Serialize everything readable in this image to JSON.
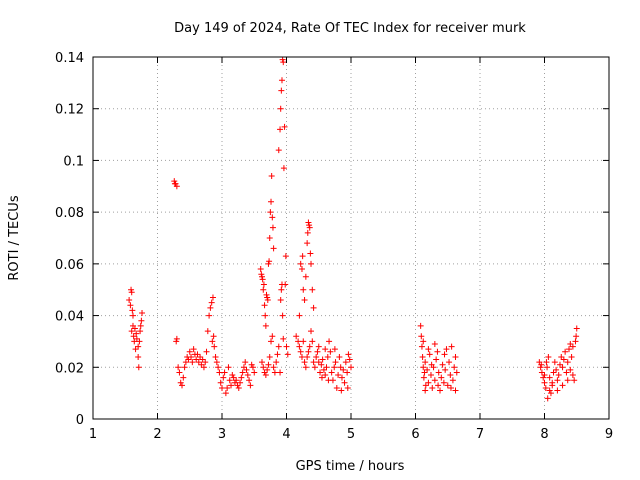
{
  "chart_data": {
    "type": "scatter",
    "title": "Day 149 of 2024, Rate Of TEC Index for receiver murk",
    "xlabel": "GPS time / hours",
    "ylabel": "ROTI / TECUs",
    "xlim": [
      1,
      9
    ],
    "ylim": [
      0,
      0.14
    ],
    "x_ticks": [
      "1",
      "2",
      "3",
      "4",
      "5",
      "6",
      "7",
      "8",
      "9"
    ],
    "y_ticks": [
      "0",
      "0.02",
      "0.04",
      "0.06",
      "0.08",
      "0.1",
      "0.12",
      "0.14"
    ],
    "grid": true,
    "marker": "+",
    "color": "#ff0000",
    "series": [
      {
        "points": [
          [
            1.56,
            0.046
          ],
          [
            1.58,
            0.044
          ],
          [
            1.59,
            0.05
          ],
          [
            1.6,
            0.049
          ],
          [
            1.61,
            0.042
          ],
          [
            1.6,
            0.034
          ],
          [
            1.62,
            0.036
          ],
          [
            1.63,
            0.032
          ],
          [
            1.64,
            0.03
          ],
          [
            1.65,
            0.035
          ],
          [
            1.67,
            0.033
          ],
          [
            1.68,
            0.031
          ],
          [
            1.7,
            0.028
          ],
          [
            1.7,
            0.024
          ],
          [
            1.71,
            0.02
          ],
          [
            1.72,
            0.03
          ],
          [
            1.73,
            0.034
          ],
          [
            1.74,
            0.036
          ],
          [
            1.75,
            0.038
          ],
          [
            1.76,
            0.041
          ],
          [
            1.66,
            0.027
          ],
          [
            1.62,
            0.04
          ],
          [
            2.26,
            0.092
          ],
          [
            2.28,
            0.091
          ],
          [
            2.3,
            0.09
          ],
          [
            2.27,
            0.091
          ],
          [
            2.29,
            0.03
          ],
          [
            2.3,
            0.031
          ],
          [
            2.32,
            0.02
          ],
          [
            2.34,
            0.018
          ],
          [
            2.36,
            0.014
          ],
          [
            2.38,
            0.013
          ],
          [
            2.4,
            0.016
          ],
          [
            2.42,
            0.02
          ],
          [
            2.44,
            0.022
          ],
          [
            2.46,
            0.024
          ],
          [
            2.48,
            0.023
          ],
          [
            2.5,
            0.026
          ],
          [
            2.52,
            0.024
          ],
          [
            2.54,
            0.022
          ],
          [
            2.56,
            0.027
          ],
          [
            2.58,
            0.025
          ],
          [
            2.6,
            0.023
          ],
          [
            2.62,
            0.025
          ],
          [
            2.64,
            0.022
          ],
          [
            2.66,
            0.024
          ],
          [
            2.68,
            0.021
          ],
          [
            2.7,
            0.023
          ],
          [
            2.72,
            0.02
          ],
          [
            2.74,
            0.022
          ],
          [
            2.76,
            0.026
          ],
          [
            2.78,
            0.034
          ],
          [
            2.8,
            0.04
          ],
          [
            2.82,
            0.043
          ],
          [
            2.84,
            0.045
          ],
          [
            2.86,
            0.047
          ],
          [
            2.85,
            0.03
          ],
          [
            2.87,
            0.032
          ],
          [
            2.88,
            0.028
          ],
          [
            2.9,
            0.024
          ],
          [
            2.92,
            0.022
          ],
          [
            2.94,
            0.02
          ],
          [
            2.96,
            0.018
          ],
          [
            2.98,
            0.014
          ],
          [
            3.0,
            0.012
          ],
          [
            3.02,
            0.016
          ],
          [
            3.04,
            0.018
          ],
          [
            3.06,
            0.01
          ],
          [
            3.08,
            0.012
          ],
          [
            3.1,
            0.02
          ],
          [
            3.12,
            0.015
          ],
          [
            3.14,
            0.013
          ],
          [
            3.16,
            0.017
          ],
          [
            3.18,
            0.016
          ],
          [
            3.2,
            0.014
          ],
          [
            3.22,
            0.015
          ],
          [
            3.24,
            0.013
          ],
          [
            3.26,
            0.012
          ],
          [
            3.28,
            0.014
          ],
          [
            3.3,
            0.016
          ],
          [
            3.32,
            0.018
          ],
          [
            3.34,
            0.02
          ],
          [
            3.36,
            0.022
          ],
          [
            3.38,
            0.019
          ],
          [
            3.4,
            0.017
          ],
          [
            3.42,
            0.015
          ],
          [
            3.44,
            0.013
          ],
          [
            3.46,
            0.021
          ],
          [
            3.48,
            0.02
          ],
          [
            3.5,
            0.018
          ],
          [
            3.6,
            0.058
          ],
          [
            3.61,
            0.056
          ],
          [
            3.62,
            0.055
          ],
          [
            3.63,
            0.054
          ],
          [
            3.64,
            0.05
          ],
          [
            3.65,
            0.052
          ],
          [
            3.66,
            0.044
          ],
          [
            3.67,
            0.04
          ],
          [
            3.68,
            0.036
          ],
          [
            3.69,
            0.048
          ],
          [
            3.7,
            0.047
          ],
          [
            3.71,
            0.046
          ],
          [
            3.72,
            0.06
          ],
          [
            3.73,
            0.061
          ],
          [
            3.74,
            0.07
          ],
          [
            3.75,
            0.08
          ],
          [
            3.76,
            0.084
          ],
          [
            3.77,
            0.094
          ],
          [
            3.78,
            0.078
          ],
          [
            3.79,
            0.074
          ],
          [
            3.8,
            0.066
          ],
          [
            3.62,
            0.022
          ],
          [
            3.64,
            0.02
          ],
          [
            3.66,
            0.018
          ],
          [
            3.68,
            0.017
          ],
          [
            3.7,
            0.019
          ],
          [
            3.72,
            0.021
          ],
          [
            3.74,
            0.024
          ],
          [
            3.76,
            0.03
          ],
          [
            3.78,
            0.032
          ],
          [
            3.8,
            0.02
          ],
          [
            3.82,
            0.018
          ],
          [
            3.84,
            0.022
          ],
          [
            3.86,
            0.025
          ],
          [
            3.88,
            0.028
          ],
          [
            3.9,
            0.018
          ],
          [
            3.91,
            0.046
          ],
          [
            3.92,
            0.05
          ],
          [
            3.93,
            0.052
          ],
          [
            3.94,
            0.04
          ],
          [
            3.95,
            0.031
          ],
          [
            3.88,
            0.104
          ],
          [
            3.9,
            0.112
          ],
          [
            3.91,
            0.12
          ],
          [
            3.92,
            0.127
          ],
          [
            3.93,
            0.131
          ],
          [
            3.94,
            0.139
          ],
          [
            3.95,
            0.138
          ],
          [
            3.96,
            0.097
          ],
          [
            3.97,
            0.113
          ],
          [
            3.98,
            0.052
          ],
          [
            3.99,
            0.063
          ],
          [
            4.0,
            0.028
          ],
          [
            4.02,
            0.025
          ],
          [
            4.15,
            0.032
          ],
          [
            4.18,
            0.03
          ],
          [
            4.2,
            0.04
          ],
          [
            4.22,
            0.06
          ],
          [
            4.24,
            0.058
          ],
          [
            4.25,
            0.063
          ],
          [
            4.26,
            0.05
          ],
          [
            4.28,
            0.046
          ],
          [
            4.3,
            0.055
          ],
          [
            4.32,
            0.068
          ],
          [
            4.33,
            0.072
          ],
          [
            4.34,
            0.076
          ],
          [
            4.35,
            0.075
          ],
          [
            4.36,
            0.074
          ],
          [
            4.37,
            0.064
          ],
          [
            4.38,
            0.06
          ],
          [
            4.4,
            0.05
          ],
          [
            4.42,
            0.043
          ],
          [
            4.2,
            0.028
          ],
          [
            4.22,
            0.026
          ],
          [
            4.24,
            0.024
          ],
          [
            4.26,
            0.03
          ],
          [
            4.28,
            0.022
          ],
          [
            4.3,
            0.02
          ],
          [
            4.32,
            0.024
          ],
          [
            4.34,
            0.026
          ],
          [
            4.36,
            0.028
          ],
          [
            4.38,
            0.034
          ],
          [
            4.4,
            0.03
          ],
          [
            4.42,
            0.022
          ],
          [
            4.44,
            0.02
          ],
          [
            4.46,
            0.024
          ],
          [
            4.48,
            0.026
          ],
          [
            4.5,
            0.022
          ],
          [
            4.52,
            0.018
          ],
          [
            4.54,
            0.021
          ],
          [
            4.56,
            0.023
          ],
          [
            4.58,
            0.019
          ],
          [
            4.6,
            0.017
          ],
          [
            4.62,
            0.02
          ],
          [
            4.64,
            0.024
          ],
          [
            4.66,
            0.03
          ],
          [
            4.68,
            0.026
          ],
          [
            4.7,
            0.018
          ],
          [
            4.72,
            0.015
          ],
          [
            4.74,
            0.02
          ],
          [
            4.76,
            0.022
          ],
          [
            4.78,
            0.012
          ],
          [
            4.8,
            0.017
          ],
          [
            4.82,
            0.024
          ],
          [
            4.84,
            0.02
          ],
          [
            4.86,
            0.016
          ],
          [
            4.88,
            0.019
          ],
          [
            4.9,
            0.014
          ],
          [
            4.92,
            0.022
          ],
          [
            4.94,
            0.018
          ],
          [
            4.96,
            0.025
          ],
          [
            4.98,
            0.023
          ],
          [
            5.0,
            0.02
          ],
          [
            4.5,
            0.028
          ],
          [
            4.55,
            0.016
          ],
          [
            4.6,
            0.027
          ],
          [
            4.65,
            0.015
          ],
          [
            4.75,
            0.027
          ],
          [
            4.85,
            0.011
          ],
          [
            4.95,
            0.012
          ],
          [
            6.08,
            0.036
          ],
          [
            6.09,
            0.032
          ],
          [
            6.1,
            0.028
          ],
          [
            6.11,
            0.024
          ],
          [
            6.12,
            0.02
          ],
          [
            6.13,
            0.016
          ],
          [
            6.14,
            0.018
          ],
          [
            6.15,
            0.022
          ],
          [
            6.16,
            0.013
          ],
          [
            6.18,
            0.019
          ],
          [
            6.2,
            0.014
          ],
          [
            6.22,
            0.025
          ],
          [
            6.24,
            0.017
          ],
          [
            6.26,
            0.012
          ],
          [
            6.28,
            0.02
          ],
          [
            6.3,
            0.015
          ],
          [
            6.32,
            0.023
          ],
          [
            6.34,
            0.026
          ],
          [
            6.36,
            0.018
          ],
          [
            6.38,
            0.011
          ],
          [
            6.4,
            0.016
          ],
          [
            6.42,
            0.021
          ],
          [
            6.44,
            0.014
          ],
          [
            6.46,
            0.019
          ],
          [
            6.48,
            0.027
          ],
          [
            6.5,
            0.013
          ],
          [
            6.52,
            0.022
          ],
          [
            6.54,
            0.017
          ],
          [
            6.56,
            0.028
          ],
          [
            6.58,
            0.015
          ],
          [
            6.6,
            0.02
          ],
          [
            6.62,
            0.024
          ],
          [
            6.64,
            0.018
          ],
          [
            6.12,
            0.03
          ],
          [
            6.2,
            0.027
          ],
          [
            6.25,
            0.021
          ],
          [
            6.35,
            0.013
          ],
          [
            6.45,
            0.025
          ],
          [
            6.55,
            0.012
          ],
          [
            6.62,
            0.011
          ],
          [
            6.15,
            0.011
          ],
          [
            6.3,
            0.029
          ],
          [
            7.92,
            0.022
          ],
          [
            7.94,
            0.02
          ],
          [
            7.96,
            0.018
          ],
          [
            7.98,
            0.016
          ],
          [
            8.0,
            0.014
          ],
          [
            8.02,
            0.012
          ],
          [
            8.04,
            0.02
          ],
          [
            8.06,
            0.024
          ],
          [
            8.08,
            0.016
          ],
          [
            8.1,
            0.01
          ],
          [
            8.12,
            0.013
          ],
          [
            8.14,
            0.018
          ],
          [
            8.16,
            0.022
          ],
          [
            8.18,
            0.019
          ],
          [
            8.2,
            0.015
          ],
          [
            8.22,
            0.017
          ],
          [
            8.24,
            0.021
          ],
          [
            8.26,
            0.024
          ],
          [
            8.28,
            0.02
          ],
          [
            8.3,
            0.023
          ],
          [
            8.32,
            0.026
          ],
          [
            8.34,
            0.018
          ],
          [
            8.36,
            0.022
          ],
          [
            8.38,
            0.027
          ],
          [
            8.4,
            0.019
          ],
          [
            8.42,
            0.024
          ],
          [
            8.44,
            0.017
          ],
          [
            8.46,
            0.015
          ],
          [
            8.48,
            0.03
          ],
          [
            8.49,
            0.032
          ],
          [
            8.5,
            0.035
          ],
          [
            8.05,
            0.008
          ],
          [
            8.08,
            0.011
          ],
          [
            8.12,
            0.014
          ],
          [
            8.2,
            0.011
          ],
          [
            8.28,
            0.013
          ],
          [
            8.36,
            0.015
          ],
          [
            7.95,
            0.021
          ],
          [
            8.0,
            0.017
          ],
          [
            8.03,
            0.022
          ],
          [
            8.44,
            0.028
          ],
          [
            8.4,
            0.029
          ]
        ]
      }
    ]
  }
}
